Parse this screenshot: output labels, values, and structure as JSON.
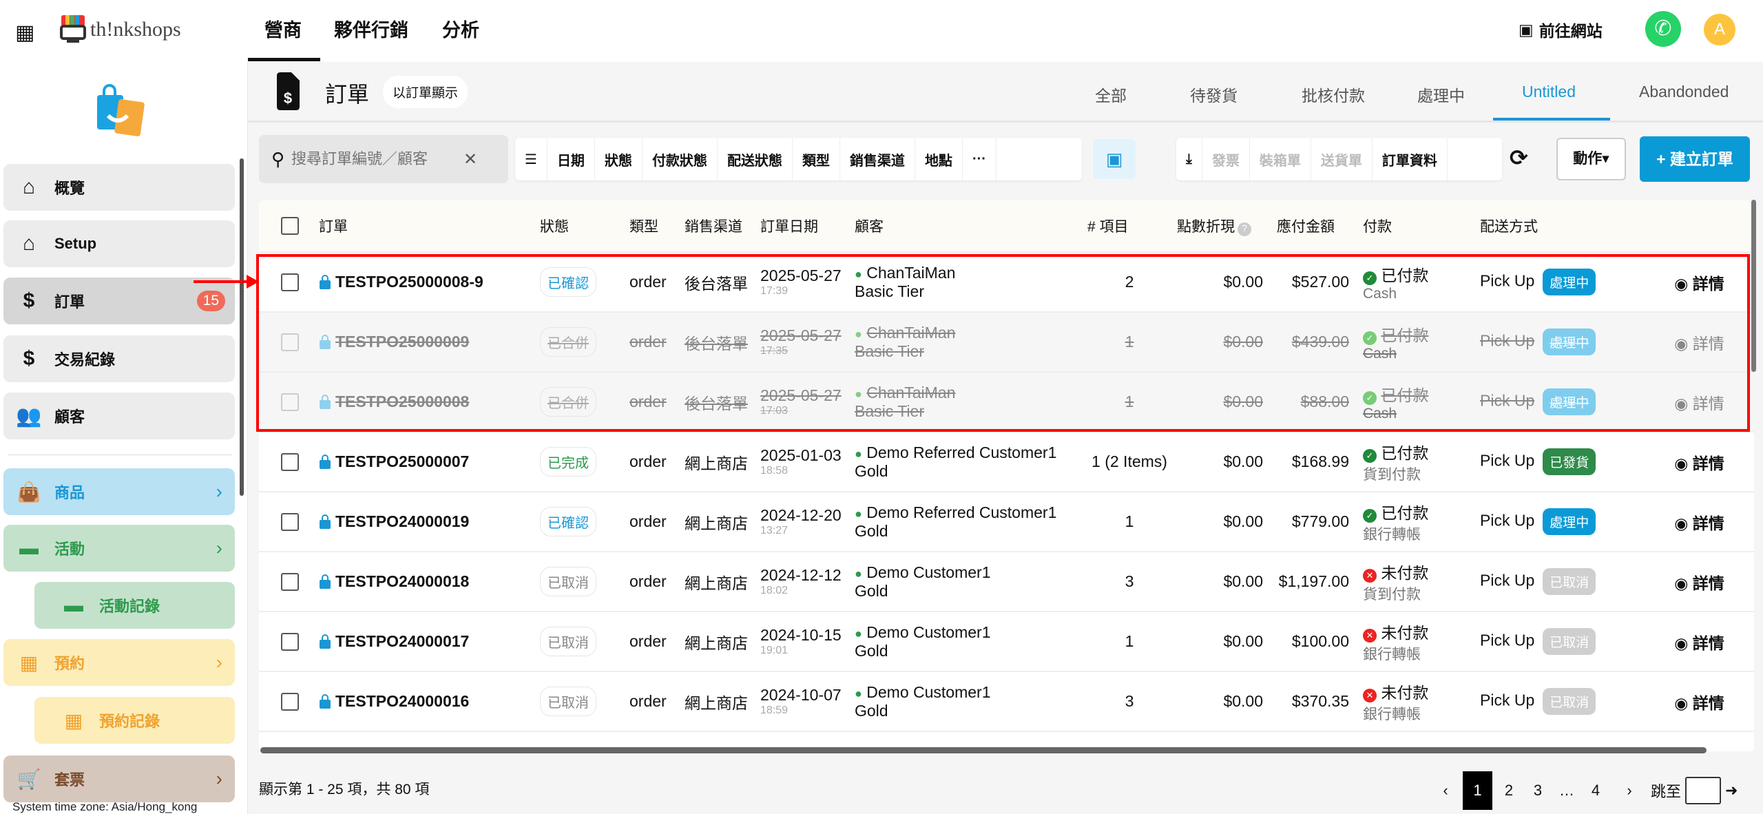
{
  "topbar": {
    "brand": "th!nkshops",
    "nav": [
      "營商",
      "夥伴行銷",
      "分析"
    ],
    "go_site": "前往網站",
    "avatar": "A"
  },
  "sidebar": {
    "items": [
      {
        "label": "概覽",
        "icon": "home-icon"
      },
      {
        "label": "Setup",
        "icon": "home-icon"
      },
      {
        "label": "訂單",
        "icon": "invoice-icon",
        "badge": "15"
      },
      {
        "label": "交易紀錄",
        "icon": "dollar-icon"
      },
      {
        "label": "顧客",
        "icon": "users-icon"
      }
    ],
    "groups": [
      {
        "label": "商品",
        "bg": "#b8e1f3",
        "fg": "#1a97d4",
        "chev": true
      },
      {
        "label": "活動",
        "bg": "#c4e2cb",
        "fg": "#2e9a4e",
        "chev": true
      },
      {
        "label": "活動記錄",
        "bg": "#c4e2cb",
        "fg": "#2e9a4e",
        "sub": true
      },
      {
        "label": "預約",
        "bg": "#fcedb9",
        "fg": "#f0a22e",
        "chev": true
      },
      {
        "label": "預約記錄",
        "bg": "#fcedb9",
        "fg": "#f0a22e",
        "sub": true
      },
      {
        "label": "套票",
        "bg": "#d6c7bd",
        "fg": "#7a4a2a",
        "chev": true
      }
    ],
    "timezone": "System time zone: Asia/Hong_kong"
  },
  "page": {
    "title": "訂單",
    "view_toggle": "以訂單顯示",
    "tabs": [
      "全部",
      "待發貨",
      "批核付款",
      "處理中",
      "Untitled",
      "Abandonded"
    ],
    "active_tab": 4
  },
  "toolbar": {
    "search_placeholder": "搜尋訂單編號／顧客",
    "filters": [
      "日期",
      "狀態",
      "付款狀態",
      "配送狀態",
      "類型",
      "銷售渠道",
      "地點",
      "···"
    ],
    "exports": [
      {
        "label": "發票",
        "disabled": true
      },
      {
        "label": "裝箱單",
        "disabled": true
      },
      {
        "label": "送貨單",
        "disabled": true
      },
      {
        "label": "訂單資料",
        "disabled": false
      }
    ],
    "action": "動作▾",
    "create": "+ 建立訂單"
  },
  "table": {
    "headers": [
      "",
      "訂單",
      "狀態",
      "類型",
      "銷售渠道",
      "訂單日期",
      "顧客",
      "# 項目",
      "點數折現",
      "應付金額",
      "付款",
      "配送方式",
      ""
    ],
    "rows": [
      {
        "id": "TESTPO25000008-9",
        "status": "已確認",
        "status_color": "#1a97d4",
        "type": "order",
        "channel": "後台落單",
        "date": "2025-05-27",
        "time": "17:39",
        "customer": "ChanTaiMan",
        "tier": "Basic Tier",
        "items": "2",
        "points": "$0.00",
        "amount": "$527.00",
        "paid": true,
        "pay": "已付款",
        "method": "Cash",
        "ship": "Pick Up",
        "ship_status": "處理中",
        "ship_color": "#0a9ad6",
        "detail": "詳情"
      },
      {
        "id": "TESTPO25000009",
        "merged": true,
        "status": "已合併",
        "status_color": "#aaa",
        "type": "order",
        "channel": "後台落單",
        "date": "2025-05-27",
        "time": "17:35",
        "customer": "ChanTaiMan",
        "tier": "Basic Tier",
        "items": "1",
        "points": "$0.00",
        "amount": "$439.00",
        "paid": true,
        "pay": "已付款",
        "method": "Cash",
        "ship": "Pick Up",
        "ship_status": "處理中",
        "ship_color": "#7fcdee",
        "detail": "詳情"
      },
      {
        "id": "TESTPO25000008",
        "merged": true,
        "status": "已合併",
        "status_color": "#aaa",
        "type": "order",
        "channel": "後台落單",
        "date": "2025-05-27",
        "time": "17:03",
        "customer": "ChanTaiMan",
        "tier": "Basic Tier",
        "items": "1",
        "points": "$0.00",
        "amount": "$88.00",
        "paid": true,
        "pay": "已付款",
        "method": "Cash",
        "ship": "Pick Up",
        "ship_status": "處理中",
        "ship_color": "#7fcdee",
        "detail": "詳情"
      },
      {
        "id": "TESTPO25000007",
        "status": "已完成",
        "status_color": "#2e9a4e",
        "type": "order",
        "channel": "網上商店",
        "date": "2025-01-03",
        "time": "18:58",
        "customer": "Demo Referred Customer1",
        "tier": "Gold",
        "items": "1 (2 Items)",
        "points": "$0.00",
        "amount": "$168.99",
        "paid": true,
        "pay": "已付款",
        "method": "貨到付款",
        "ship": "Pick Up",
        "ship_status": "已發貨",
        "ship_color": "#2e8b4a",
        "detail": "詳情"
      },
      {
        "id": "TESTPO24000019",
        "status": "已確認",
        "status_color": "#1a97d4",
        "type": "order",
        "channel": "網上商店",
        "date": "2024-12-20",
        "time": "13:27",
        "customer": "Demo Referred Customer1",
        "tier": "Gold",
        "items": "1",
        "points": "$0.00",
        "amount": "$779.00",
        "paid": true,
        "pay": "已付款",
        "method": "銀行轉帳",
        "ship": "Pick Up",
        "ship_status": "處理中",
        "ship_color": "#0a9ad6",
        "detail": "詳情"
      },
      {
        "id": "TESTPO24000018",
        "status": "已取消",
        "status_color": "#888",
        "type": "order",
        "channel": "網上商店",
        "date": "2024-12-12",
        "time": "18:02",
        "customer": "Demo Customer1",
        "tier": "Gold",
        "items": "3",
        "points": "$0.00",
        "amount": "$1,197.00",
        "paid": false,
        "pay": "未付款",
        "method": "貨到付款",
        "ship": "Pick Up",
        "ship_status": "已取消",
        "ship_color": "#cfcfcf",
        "detail": "詳情"
      },
      {
        "id": "TESTPO24000017",
        "status": "已取消",
        "status_color": "#888",
        "type": "order",
        "channel": "網上商店",
        "date": "2024-10-15",
        "time": "19:01",
        "customer": "Demo Customer1",
        "tier": "Gold",
        "items": "1",
        "points": "$0.00",
        "amount": "$100.00",
        "paid": false,
        "pay": "未付款",
        "method": "銀行轉帳",
        "ship": "Pick Up",
        "ship_status": "已取消",
        "ship_color": "#cfcfcf",
        "detail": "詳情"
      },
      {
        "id": "TESTPO24000016",
        "status": "已取消",
        "status_color": "#888",
        "type": "order",
        "channel": "網上商店",
        "date": "2024-10-07",
        "time": "18:59",
        "customer": "Demo Customer1",
        "tier": "Gold",
        "items": "3",
        "points": "$0.00",
        "amount": "$370.35",
        "paid": false,
        "pay": "未付款",
        "method": "銀行轉帳",
        "ship": "Pick Up",
        "ship_status": "已取消",
        "ship_color": "#cfcfcf",
        "detail": "詳情"
      }
    ]
  },
  "footer": {
    "summary": "顯示第 1 - 25 項，共 80 項",
    "pages": [
      "1",
      "2",
      "3",
      "…",
      "4"
    ],
    "current_page": "1",
    "jump_label": "跳至"
  },
  "colors": {
    "accent": "#0a9ad6",
    "highlight": "#ff0000"
  }
}
